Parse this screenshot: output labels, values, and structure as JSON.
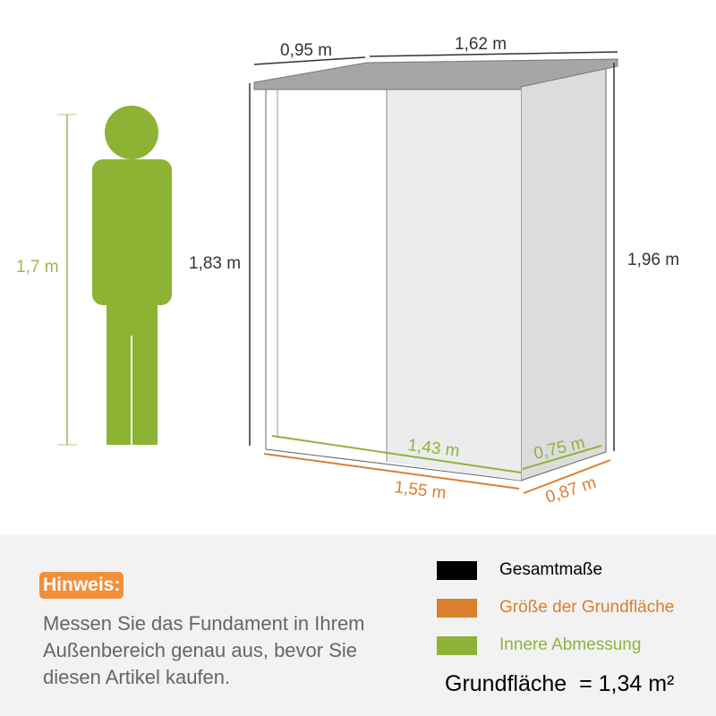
{
  "colors": {
    "overall": "#000000",
    "footprint": "#d97f2e",
    "inner": "#8fb339",
    "person": "#8db334",
    "roof": "#a6a6a6"
  },
  "person": {
    "height_label": "1,7 m"
  },
  "shed": {
    "roof_depth": "0,95 m",
    "roof_width": "1,62 m",
    "front_height": "1,83 m",
    "back_height": "1,96 m",
    "inner_width": "1,43 m",
    "inner_depth": "0,75 m",
    "base_width": "1,55 m",
    "base_depth": "0,87 m"
  },
  "note": {
    "badge": "Hinweis:",
    "text": "Messen Sie das Fundament in Ihrem Außenbereich genau aus, bevor Sie diesen Artikel kaufen."
  },
  "legend": [
    {
      "label": "Gesamtmaße",
      "color": "#000000"
    },
    {
      "label": "Größe der Grundfläche",
      "color": "#d97f2e"
    },
    {
      "label": "Innere Abmessung",
      "color": "#8fb339"
    }
  ],
  "area": "Grundfläche  = 1,34 m²"
}
